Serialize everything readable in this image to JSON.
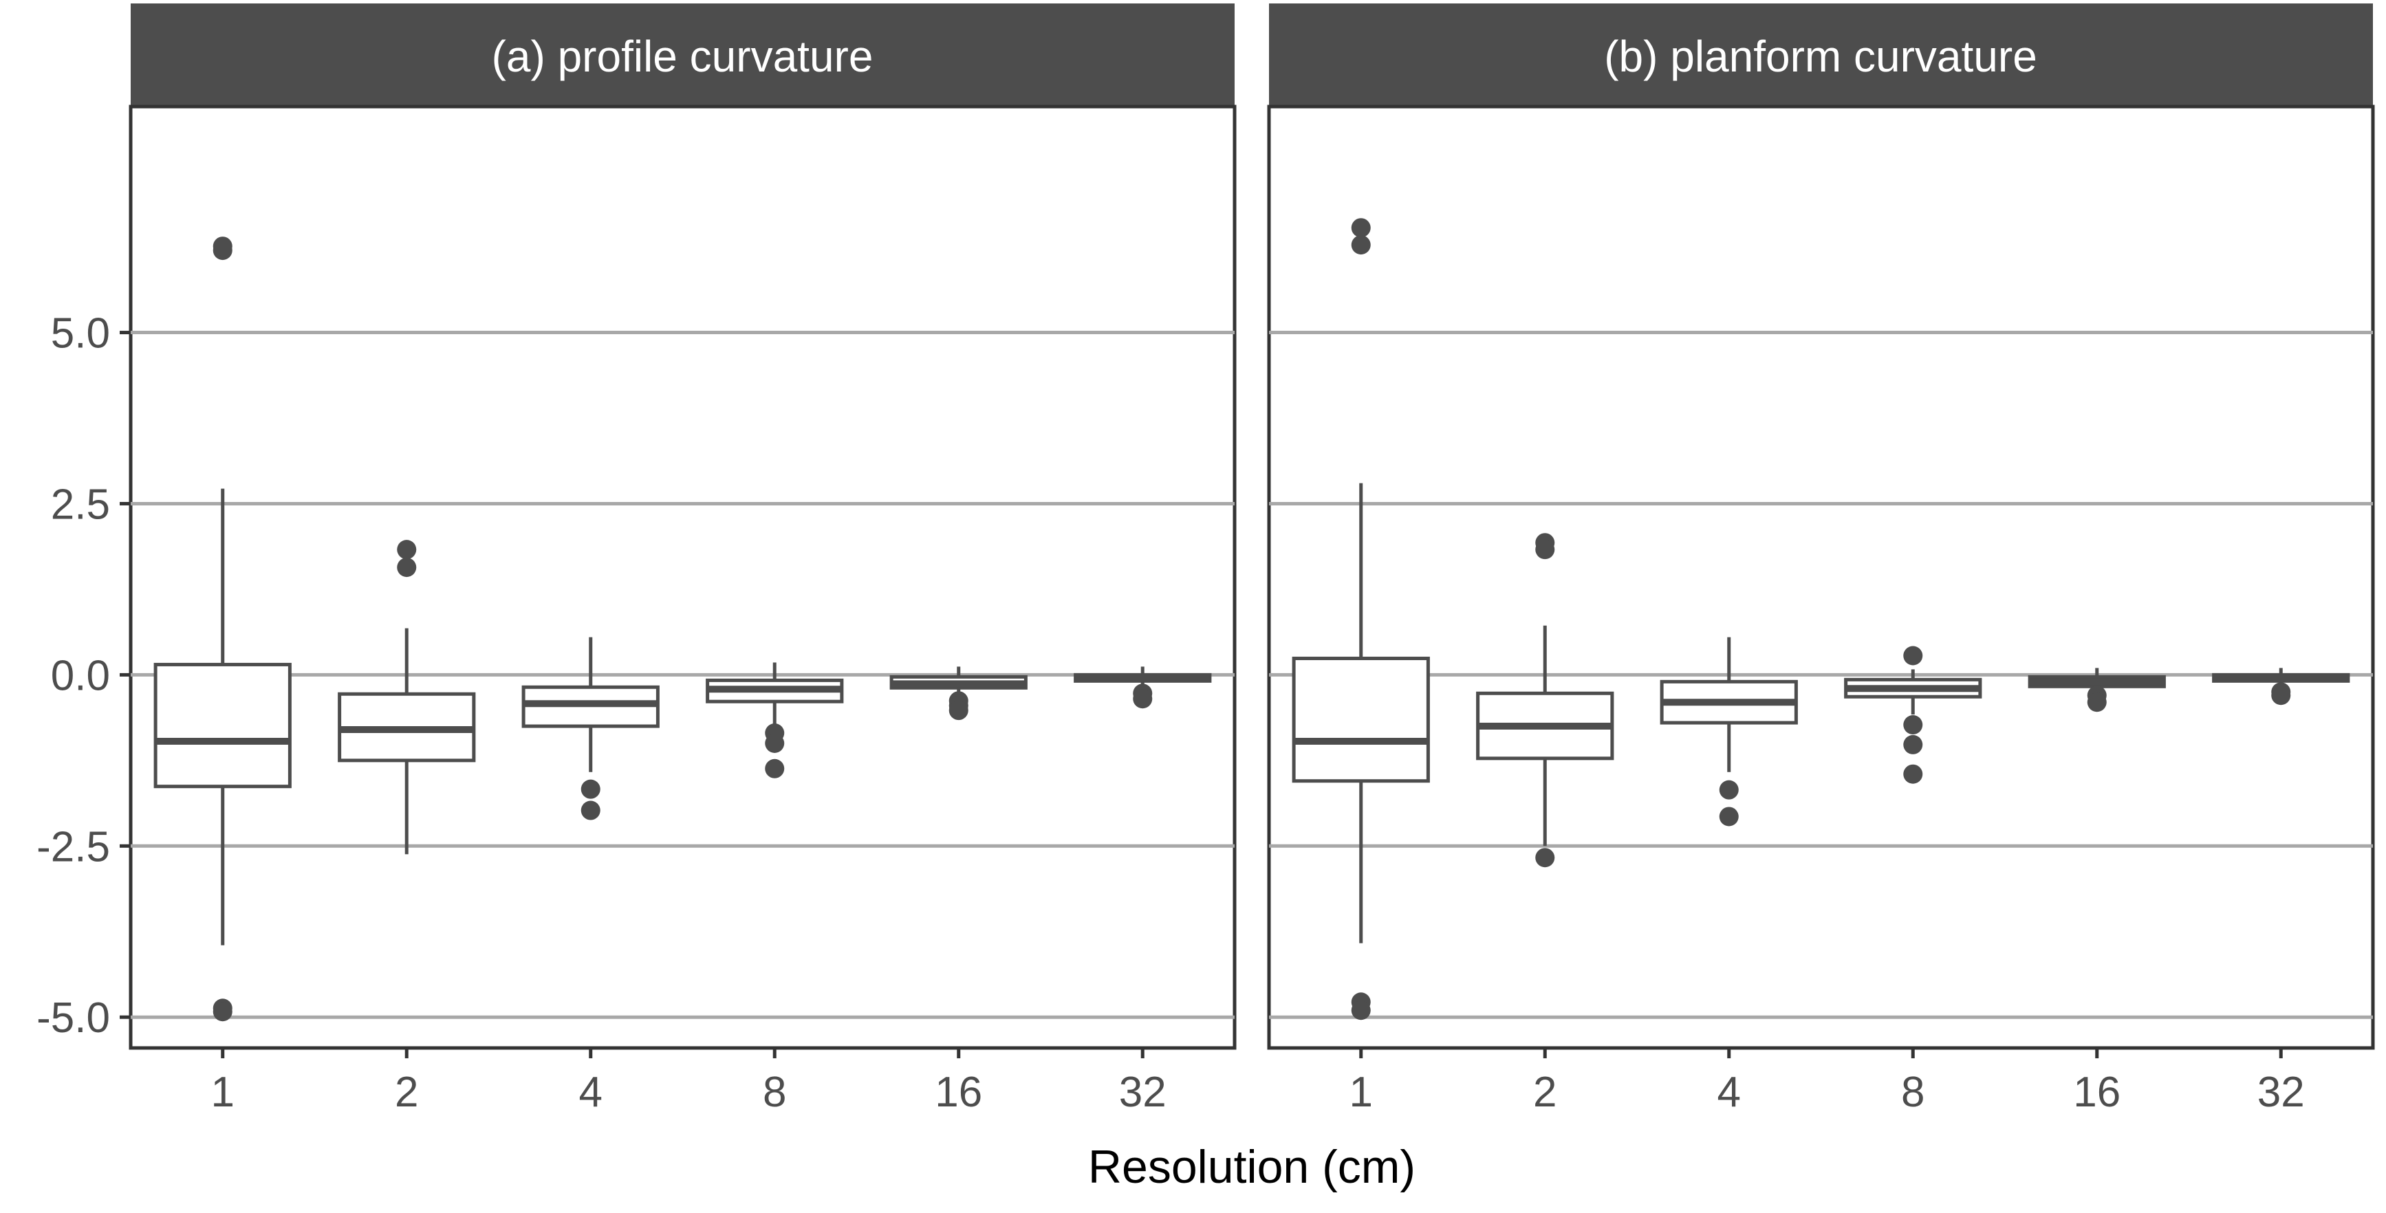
{
  "chart_data": {
    "type": "boxplot",
    "xlabel": "Resolution (cm)",
    "ylabel": "",
    "ylim": [
      -5.45,
      8.3
    ],
    "y_ticks": [
      5.0,
      2.5,
      0.0,
      -2.5,
      -5.0
    ],
    "y_tick_labels": [
      "5.0",
      "2.5",
      "0.0",
      "-2.5",
      "-5.0"
    ],
    "categories": [
      "1",
      "2",
      "4",
      "8",
      "16",
      "32"
    ],
    "grid": "horizontal-major",
    "colors": {
      "strip_bg": "#4d4d4d",
      "box_stroke": "#4d4d4d",
      "grid": "#a8a8a8",
      "panel_border": "#333333"
    },
    "panels": [
      {
        "title": "(a) profile curvature",
        "boxes": [
          {
            "category": "1",
            "whisker_low": -3.95,
            "q1": -1.63,
            "median": -0.97,
            "q3": 0.15,
            "whisker_high": 2.72,
            "outliers": [
              6.2,
              6.26,
              -4.87,
              -4.92
            ]
          },
          {
            "category": "2",
            "whisker_low": -2.62,
            "q1": -1.25,
            "median": -0.8,
            "q3": -0.28,
            "whisker_high": 0.68,
            "outliers": [
              1.83,
              1.57
            ]
          },
          {
            "category": "4",
            "whisker_low": -1.42,
            "q1": -0.75,
            "median": -0.42,
            "q3": -0.18,
            "whisker_high": 0.55,
            "outliers": [
              -1.67,
              -1.98
            ]
          },
          {
            "category": "8",
            "whisker_low": -0.78,
            "q1": -0.39,
            "median": -0.21,
            "q3": -0.08,
            "whisker_high": 0.18,
            "outliers": [
              -0.85,
              -1.0,
              -1.37
            ]
          },
          {
            "category": "16",
            "whisker_low": -0.32,
            "q1": -0.19,
            "median": -0.13,
            "q3": -0.03,
            "whisker_high": 0.12,
            "outliers": [
              -0.38,
              -0.45,
              -0.52
            ]
          },
          {
            "category": "32",
            "whisker_low": -0.2,
            "q1": -0.09,
            "median": -0.05,
            "q3": 0.0,
            "whisker_high": 0.12,
            "outliers": [
              -0.27,
              -0.35
            ]
          }
        ]
      },
      {
        "title": "(b) planform curvature",
        "boxes": [
          {
            "category": "1",
            "whisker_low": -3.92,
            "q1": -1.55,
            "median": -0.97,
            "q3": 0.24,
            "whisker_high": 2.8,
            "outliers": [
              6.53,
              6.28,
              -4.78,
              -4.9
            ]
          },
          {
            "category": "2",
            "whisker_low": -2.5,
            "q1": -1.22,
            "median": -0.75,
            "q3": -0.27,
            "whisker_high": 0.72,
            "outliers": [
              1.93,
              1.83,
              -2.67
            ]
          },
          {
            "category": "4",
            "whisker_low": -1.42,
            "q1": -0.7,
            "median": -0.4,
            "q3": -0.1,
            "whisker_high": 0.55,
            "outliers": [
              -1.68,
              -2.07
            ]
          },
          {
            "category": "8",
            "whisker_low": -0.58,
            "q1": -0.32,
            "median": -0.2,
            "q3": -0.07,
            "whisker_high": 0.08,
            "outliers": [
              0.28,
              -0.73,
              -1.02,
              -1.45
            ]
          },
          {
            "category": "16",
            "whisker_low": -0.3,
            "q1": -0.17,
            "median": -0.1,
            "q3": -0.03,
            "whisker_high": 0.1,
            "outliers": [
              -0.3,
              -0.4
            ]
          },
          {
            "category": "32",
            "whisker_low": -0.18,
            "q1": -0.09,
            "median": -0.04,
            "q3": 0.0,
            "whisker_high": 0.1,
            "outliers": [
              -0.25,
              -0.3
            ]
          }
        ]
      }
    ]
  }
}
